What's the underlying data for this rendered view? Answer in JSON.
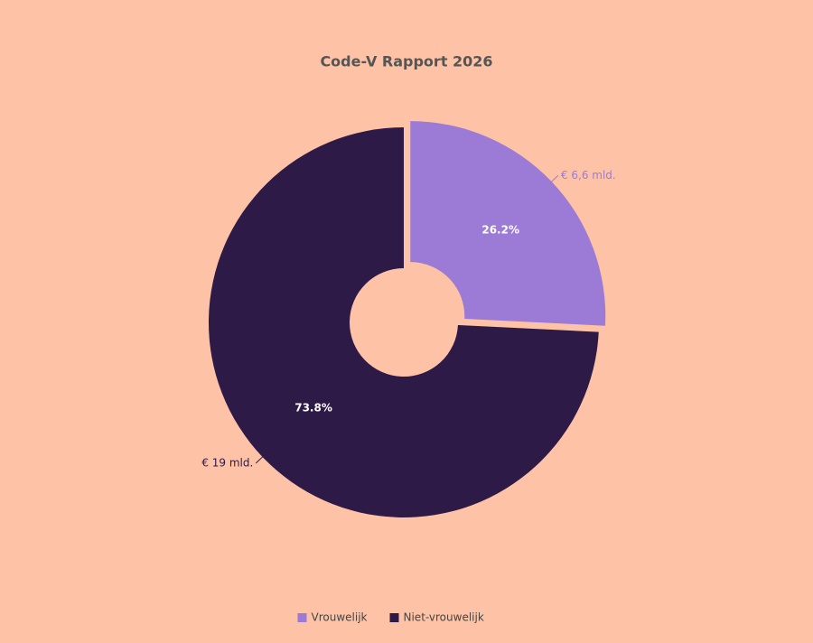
{
  "chart_data": {
    "type": "pie",
    "title": "Code-V Rapport 2026",
    "categories": [
      "Vrouwelijk",
      "Niet-vrouwelijk"
    ],
    "values": [
      6.6,
      19
    ],
    "value_labels": [
      "€ 6,6 mld.",
      "€ 19 mld."
    ],
    "percent_labels": [
      "26.2%",
      "73.8%"
    ],
    "colors": [
      "#9b7bd6",
      "#2d1a47"
    ],
    "label_colors": [
      "#9b7bd6",
      "#2d1a47"
    ],
    "legend": "bottom"
  }
}
